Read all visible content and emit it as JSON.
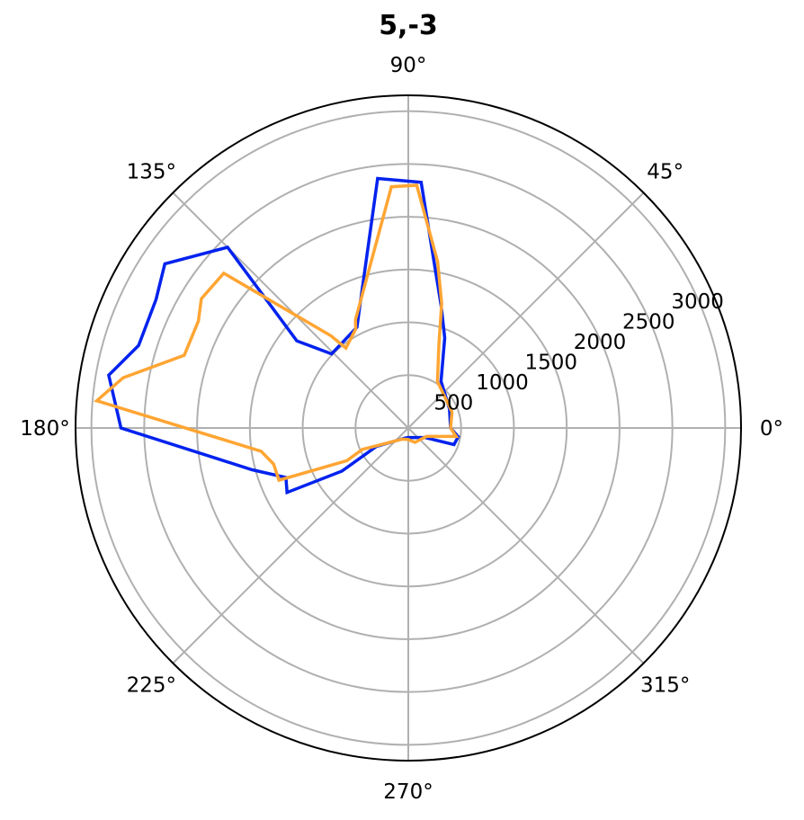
{
  "chart_data": {
    "type": "line",
    "projection": "polar",
    "title": "5,-3",
    "angle_unit": "degrees",
    "theta_ticks": [
      0,
      45,
      90,
      135,
      180,
      225,
      270,
      315
    ],
    "theta_tick_labels": [
      "0°",
      "45°",
      "90°",
      "135°",
      "180°",
      "225°",
      "270°",
      "315°"
    ],
    "r_ticks": [
      500,
      1000,
      1500,
      2000,
      2500,
      3000
    ],
    "r_tick_labels": [
      "500",
      "1000",
      "1500",
      "2000",
      "2500",
      "3000"
    ],
    "rlim": [
      0,
      3150
    ],
    "grid": true,
    "legend": "none",
    "series": [
      {
        "color": "#0022ee",
        "points": [
          {
            "theta": 0,
            "r": 400
          },
          {
            "theta": -10,
            "r": 480
          },
          {
            "theta": -20,
            "r": 460
          },
          {
            "theta": -30,
            "r": 180
          },
          {
            "theta": -55,
            "r": 110
          },
          {
            "theta": -90,
            "r": 90
          },
          {
            "theta": -108,
            "r": 100
          },
          {
            "theta": -150,
            "r": 350
          },
          {
            "theta": 213,
            "r": 750
          },
          {
            "theta": 208,
            "r": 1300
          },
          {
            "theta": 202,
            "r": 1250
          },
          {
            "theta": 195,
            "r": 1530
          },
          {
            "theta": 180,
            "r": 2720
          },
          {
            "theta": 170,
            "r": 2880
          },
          {
            "theta": 163,
            "r": 2670
          },
          {
            "theta": 153,
            "r": 2680
          },
          {
            "theta": 146,
            "r": 2780
          },
          {
            "theta": 135,
            "r": 2420
          },
          {
            "theta": 142,
            "r": 1340
          },
          {
            "theta": 136,
            "r": 1010
          },
          {
            "theta": 117,
            "r": 1070
          },
          {
            "theta": 112,
            "r": 1230
          },
          {
            "theta": 97,
            "r": 2380
          },
          {
            "theta": 87,
            "r": 2330
          },
          {
            "theta": 75,
            "r": 1200
          },
          {
            "theta": 68,
            "r": 920
          },
          {
            "theta": 55,
            "r": 540
          },
          {
            "theta": 25,
            "r": 430
          },
          {
            "theta": 0,
            "r": 400
          }
        ]
      },
      {
        "color": "#ffa533",
        "points": [
          {
            "theta": 0,
            "r": 400
          },
          {
            "theta": -10,
            "r": 460
          },
          {
            "theta": -25,
            "r": 190
          },
          {
            "theta": -65,
            "r": 150
          },
          {
            "theta": -90,
            "r": 110
          },
          {
            "theta": -118,
            "r": 120
          },
          {
            "theta": -155,
            "r": 480
          },
          {
            "theta": 208,
            "r": 660
          },
          {
            "theta": 202,
            "r": 1320
          },
          {
            "theta": 195,
            "r": 1320
          },
          {
            "theta": 189,
            "r": 1410
          },
          {
            "theta": 175,
            "r": 2960
          },
          {
            "theta": 170,
            "r": 2740
          },
          {
            "theta": 162,
            "r": 2230
          },
          {
            "theta": 153,
            "r": 2230
          },
          {
            "theta": 148,
            "r": 2310
          },
          {
            "theta": 140,
            "r": 2280
          },
          {
            "theta": 130,
            "r": 1140
          },
          {
            "theta": 128,
            "r": 960
          },
          {
            "theta": 118,
            "r": 1060
          },
          {
            "theta": 116,
            "r": 1140
          },
          {
            "theta": 94,
            "r": 2290
          },
          {
            "theta": 88,
            "r": 2300
          },
          {
            "theta": 80,
            "r": 1600
          },
          {
            "theta": 75,
            "r": 1220
          },
          {
            "theta": 70,
            "r": 850
          },
          {
            "theta": 58,
            "r": 520
          },
          {
            "theta": 20,
            "r": 440
          },
          {
            "theta": 0,
            "r": 400
          }
        ]
      }
    ]
  }
}
